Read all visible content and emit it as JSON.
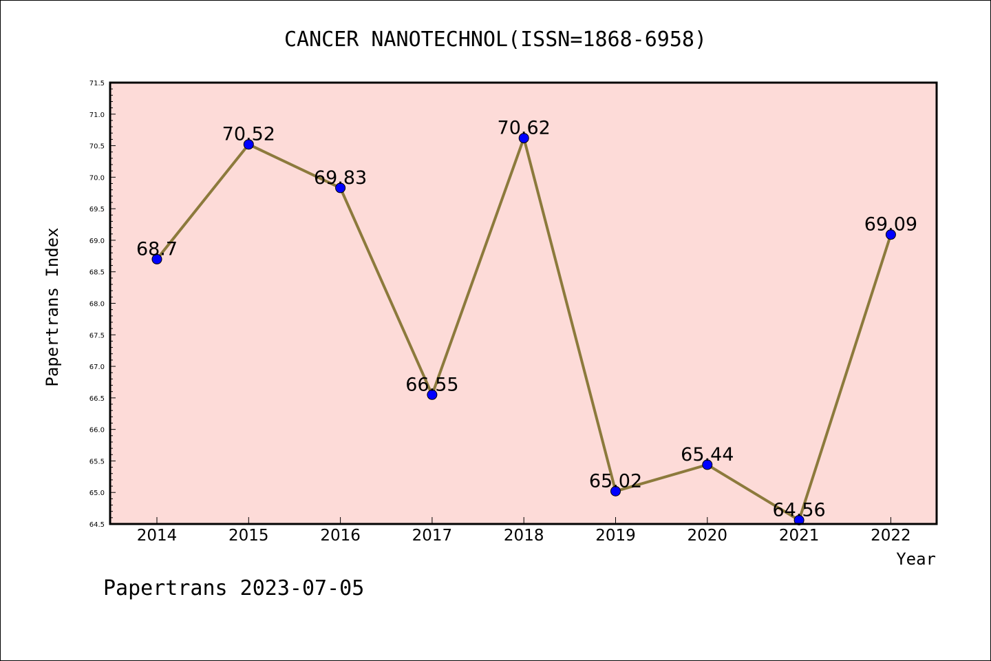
{
  "chart_data": {
    "type": "line",
    "title": "CANCER NANOTECHNOL(ISSN=1868-6958)",
    "xlabel": "Year",
    "ylabel": "Papertrans Index",
    "categories": [
      "2014",
      "2015",
      "2016",
      "2017",
      "2018",
      "2019",
      "2020",
      "2021",
      "2022"
    ],
    "values": [
      68.7,
      70.52,
      69.83,
      66.55,
      70.62,
      65.02,
      65.44,
      64.56,
      69.09
    ],
    "data_labels": [
      "68.7",
      "70.52",
      "69.83",
      "66.55",
      "70.62",
      "65.02",
      "65.44",
      "64.56",
      "69.09"
    ],
    "ylim": [
      64.5,
      71.5
    ],
    "yticks": [
      "64.5",
      "65.0",
      "65.5",
      "66.0",
      "66.5",
      "67.0",
      "67.5",
      "68.0",
      "68.5",
      "69.0",
      "69.5",
      "70.0",
      "70.5",
      "71.0",
      "71.5"
    ],
    "grid": false,
    "legend": "none",
    "colors": {
      "plot_background": "#fddbd8",
      "line": "#8c7a3c",
      "marker": "#0000ff"
    }
  },
  "footer": "Papertrans 2023-07-05"
}
